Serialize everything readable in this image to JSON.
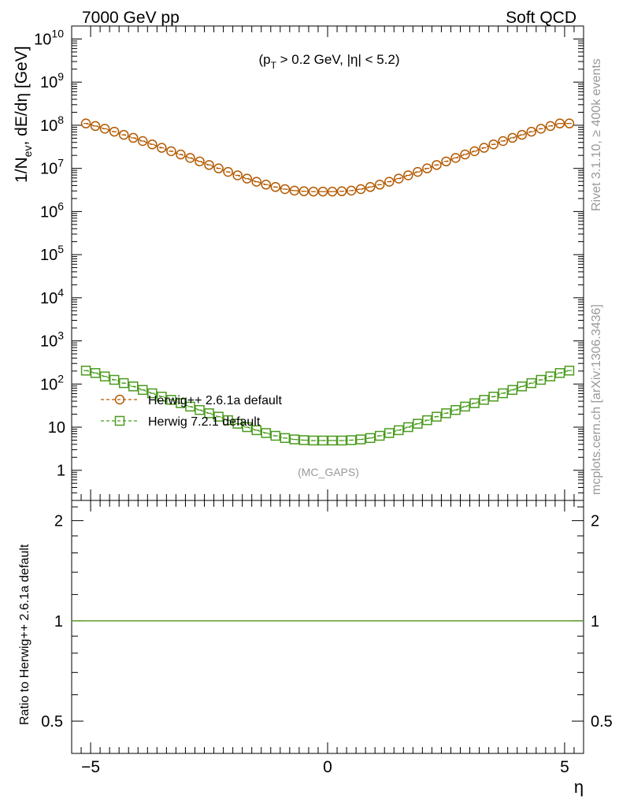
{
  "header": {
    "left": "7000 GeV pp",
    "right": "Soft QCD"
  },
  "side_labels": {
    "rivet": "Rivet 3.1.10, ≥ 400k events",
    "mcplots": "mcplots.cern.ch [arXiv:1306.3436]"
  },
  "annotation": {
    "cut_prefix": "(p",
    "cut_sub": "T",
    "cut_suffix": " > 0.2 GeV, |η| < 5.2)",
    "analysis": "(MC_GAPS)"
  },
  "colors": {
    "herwigpp": "#b35900",
    "herwig7": "#4b9b1e",
    "watermark": "#999999"
  },
  "chart_data": [
    {
      "type": "scatter",
      "panel": "main",
      "ylabel": "1/N_ev, dE/dη [GeV]",
      "ylabel_parts": {
        "a": "1/N",
        "sub": "ev",
        "b": ", dE/dη [GeV]"
      },
      "xlim": [
        -5.4,
        5.4
      ],
      "ylim": [
        0.2,
        20000000000
      ],
      "yscale": "log",
      "ytick_labels": [
        {
          "value": 10000000000,
          "base": "10",
          "exp": "10"
        },
        {
          "value": 1000000000,
          "base": "10",
          "exp": "9"
        },
        {
          "value": 100000000,
          "base": "10",
          "exp": "8"
        },
        {
          "value": 10000000,
          "base": "10",
          "exp": "7"
        },
        {
          "value": 1000000,
          "base": "10",
          "exp": "6"
        },
        {
          "value": 100000,
          "base": "10",
          "exp": "5"
        },
        {
          "value": 10000,
          "base": "10",
          "exp": "4"
        },
        {
          "value": 1000,
          "base": "10",
          "exp": "3"
        },
        {
          "value": 100,
          "base": "10",
          "exp": "2"
        },
        {
          "value": 10,
          "base": "10",
          "exp": ""
        },
        {
          "value": 1,
          "base": "1",
          "exp": ""
        }
      ],
      "legend": "left, below the upper curve",
      "series": [
        {
          "name": "Herwig++ 2.6.1a default",
          "marker": "circle",
          "x": [
            -5.1,
            -4.9,
            -4.7,
            -4.5,
            -4.3,
            -4.1,
            -3.9,
            -3.7,
            -3.5,
            -3.3,
            -3.1,
            -2.9,
            -2.7,
            -2.5,
            -2.3,
            -2.1,
            -1.9,
            -1.7,
            -1.5,
            -1.3,
            -1.1,
            -0.9,
            -0.7,
            -0.5,
            -0.3,
            -0.1,
            0.1,
            0.3,
            0.5,
            0.7,
            0.9,
            1.1,
            1.3,
            1.5,
            1.7,
            1.9,
            2.1,
            2.3,
            2.5,
            2.7,
            2.9,
            3.1,
            3.3,
            3.5,
            3.7,
            3.9,
            4.1,
            4.3,
            4.5,
            4.7,
            4.9,
            5.1
          ],
          "y": [
            110000000,
            96000000,
            83000000,
            71000000,
            60000000,
            51000000,
            43000000,
            36000000,
            30000000,
            25000000,
            21000000,
            17500000,
            14500000,
            12000000,
            10000000,
            8300000,
            6900000,
            5800000,
            4900000,
            4200000,
            3700000,
            3300000,
            3050000,
            2950000,
            2900000,
            2900000,
            2900000,
            2950000,
            3050000,
            3300000,
            3700000,
            4200000,
            4900000,
            5800000,
            6900000,
            8300000,
            10000000,
            12000000,
            14500000,
            17500000,
            21000000,
            25000000,
            30000000,
            36000000,
            43000000,
            51000000,
            60000000,
            71000000,
            83000000,
            96000000,
            110000000,
            110000000
          ]
        },
        {
          "name": "Herwig 7.2.1 default",
          "marker": "square",
          "x": [
            -5.1,
            -4.9,
            -4.7,
            -4.5,
            -4.3,
            -4.1,
            -3.9,
            -3.7,
            -3.5,
            -3.3,
            -3.1,
            -2.9,
            -2.7,
            -2.5,
            -2.3,
            -2.1,
            -1.9,
            -1.7,
            -1.5,
            -1.3,
            -1.1,
            -0.9,
            -0.7,
            -0.5,
            -0.3,
            -0.1,
            0.1,
            0.3,
            0.5,
            0.7,
            0.9,
            1.1,
            1.3,
            1.5,
            1.7,
            1.9,
            2.1,
            2.3,
            2.5,
            2.7,
            2.9,
            3.1,
            3.3,
            3.5,
            3.7,
            3.9,
            4.1,
            4.3,
            4.5,
            4.7,
            4.9,
            5.1
          ],
          "y": [
            205,
            180,
            150,
            125,
            105,
            88,
            73,
            61,
            51,
            43,
            36,
            30,
            25,
            21,
            17.5,
            14.5,
            12,
            10,
            8.5,
            7.3,
            6.3,
            5.6,
            5.2,
            5.0,
            4.9,
            4.9,
            4.9,
            4.9,
            5.0,
            5.2,
            5.6,
            6.3,
            7.3,
            8.5,
            10,
            12,
            14.5,
            17.5,
            21,
            25,
            30,
            36,
            43,
            51,
            61,
            73,
            88,
            105,
            125,
            150,
            180,
            205
          ]
        }
      ]
    },
    {
      "type": "line",
      "panel": "ratio",
      "ylabel": "Ratio to Herwig++ 2.6.1a default",
      "xlabel": "η",
      "xlim": [
        -5.4,
        5.4
      ],
      "ylim": [
        0.4,
        2.3
      ],
      "yscale": "log",
      "ytick_labels": [
        {
          "value": 2,
          "label": "2"
        },
        {
          "value": 1,
          "label": "1"
        },
        {
          "value": 0.5,
          "label": "0.5"
        }
      ],
      "xtick_labels": [
        {
          "value": -5,
          "label": "−5"
        },
        {
          "value": 0,
          "label": "0"
        },
        {
          "value": 5,
          "label": "5"
        }
      ],
      "series": [
        {
          "name": "Herwig++ 2.6.1a default",
          "x": [
            -5.4,
            5.4
          ],
          "values": [
            1,
            1
          ]
        },
        {
          "name": "Herwig 7.2.1 default",
          "x": [
            -5.4,
            5.4
          ],
          "values": [
            1,
            1
          ]
        }
      ]
    }
  ]
}
